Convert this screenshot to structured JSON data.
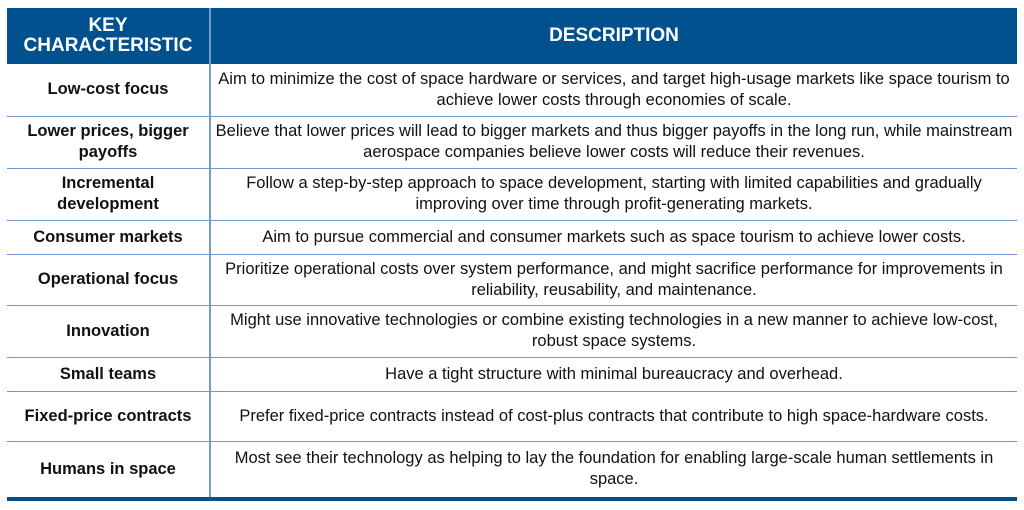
{
  "header": {
    "col1": "KEY CHARACTERISTIC",
    "col2": "DESCRIPTION"
  },
  "colors": {
    "header": "#02518f",
    "grid": "#6f9ccc"
  },
  "rows": [
    {
      "key": "Low-cost focus",
      "desc": "Aim to minimize the cost of space hardware or services, and target high-usage markets like space tourism to achieve lower costs through economies of scale.",
      "h": 52
    },
    {
      "key": "Lower prices, bigger payoffs",
      "desc": "Believe that lower prices will lead to bigger markets and thus bigger payoffs in the long run, while mainstream aerospace companies believe lower costs will reduce their revenues.",
      "h": 52
    },
    {
      "key": "Incremental development",
      "desc": "Follow a step-by-step approach to space development, starting with limited capabilities and gradually improving over time through profit-generating markets.",
      "h": 52
    },
    {
      "key": "Consumer markets",
      "desc": "Aim to pursue commercial and consumer markets such as space tourism to achieve lower costs.",
      "h": 34
    },
    {
      "key": "Operational focus",
      "desc": "Prioritize operational costs over system performance, and might sacrifice performance for improvements in reliability, reusability, and maintenance.",
      "h": 51
    },
    {
      "key": "Innovation",
      "desc": "Might use innovative technologies or combine existing technologies in a new manner to achieve low-cost, robust space systems.",
      "h": 52
    },
    {
      "key": "Small teams",
      "desc": "Have a tight structure with minimal bureaucracy and overhead.",
      "h": 34
    },
    {
      "key": "Fixed-price contracts",
      "desc": "Prefer fixed-price contracts instead of cost-plus contracts that contribute to high space-hardware costs.",
      "h": 50
    },
    {
      "key": "Humans in space",
      "desc": "Most see their technology as helping to lay the foundation for enabling large-scale human settlements in space.",
      "h": 58
    }
  ]
}
